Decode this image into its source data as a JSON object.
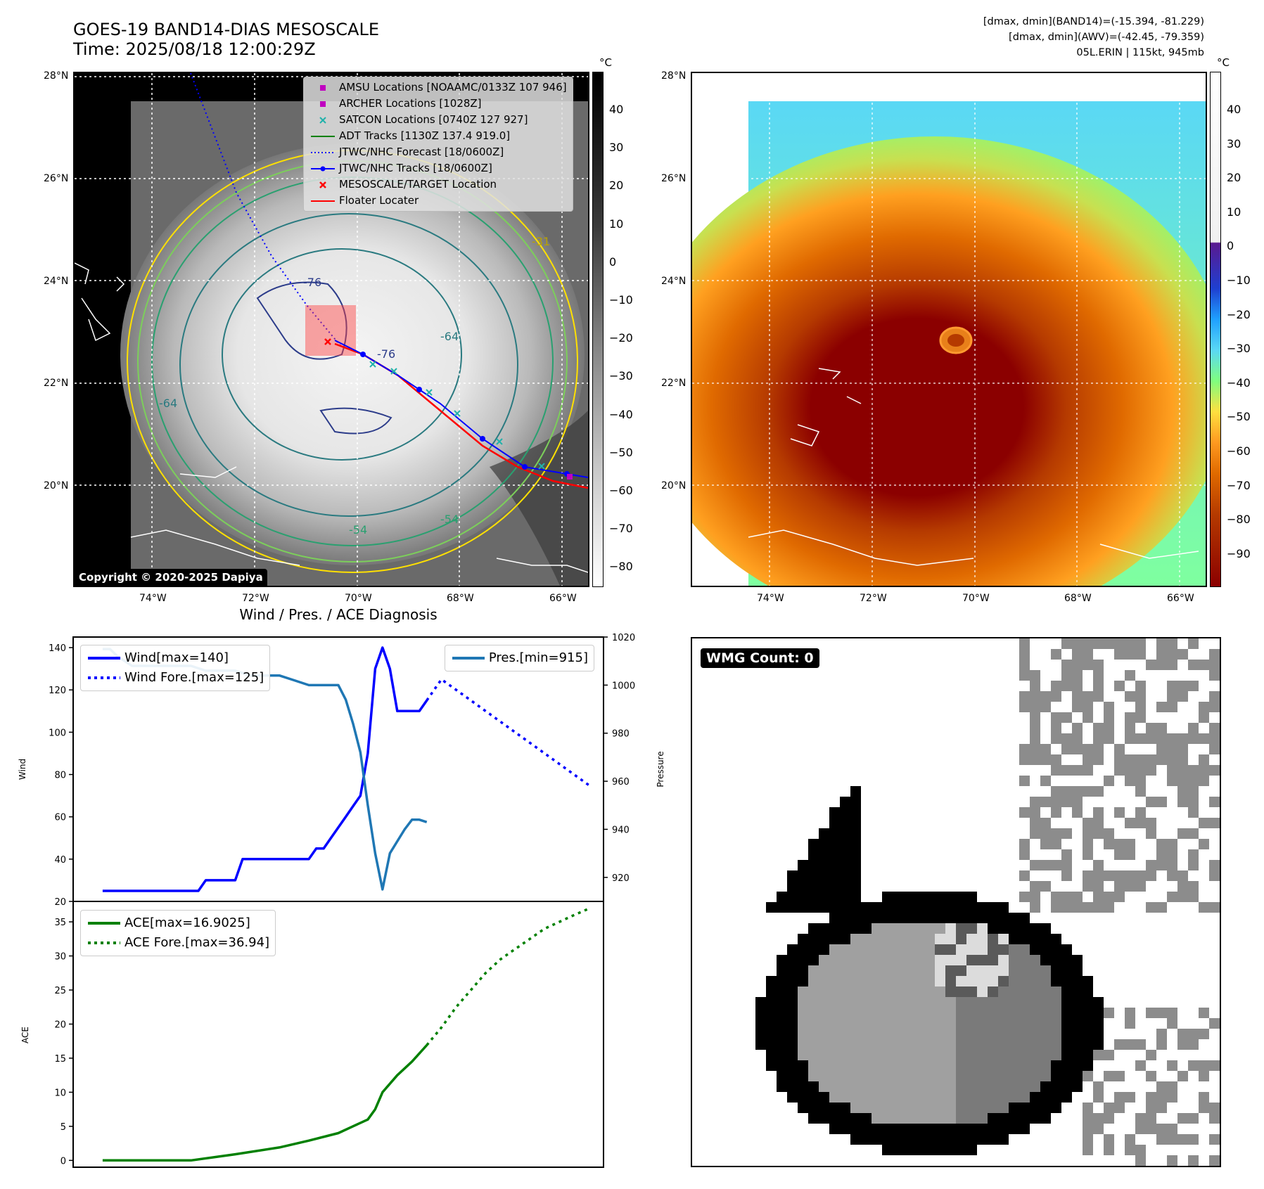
{
  "header": {
    "title": "GOES-19 BAND14-DIAS MESOSCALE",
    "time": "Time: 2025/08/18 12:00:29Z",
    "stats_band14": "[dmax, dmin](BAND14)=(-15.394, -81.229)",
    "stats_awv": "[dmax, dmin](AWV)=(-42.45, -79.359)",
    "storm": "05L.ERIN | 115kt, 945mb"
  },
  "ir_panel": {
    "lat_labels": [
      "28°N",
      "26°N",
      "24°N",
      "22°N",
      "20°N"
    ],
    "lon_labels": [
      "74°W",
      "72°W",
      "70°W",
      "68°W",
      "66°W"
    ],
    "colorbar_unit": "°C",
    "colorbar_ticks": [
      "40",
      "30",
      "20",
      "10",
      "0",
      "−10",
      "−20",
      "−30",
      "−40",
      "−50",
      "−60",
      "−70",
      "−80"
    ],
    "copyright": "Copyright © 2020-2025 Dapiya",
    "contour_labels": [
      "-76",
      "-76",
      "-64",
      "-64",
      "-54",
      "-54",
      "-31"
    ],
    "legend": [
      {
        "label": "AMSU Locations [NOAAMC/0133Z 107 946]",
        "color": "#c000c0",
        "marker": "square"
      },
      {
        "label": "ARCHER Locations [1028Z]",
        "color": "#c000c0",
        "marker": "square"
      },
      {
        "label": "SATCON Locations [0740Z 127 927]",
        "color": "#20b2aa",
        "marker": "x"
      },
      {
        "label": "ADT Tracks [1130Z 137.4 919.0]",
        "color": "#008000",
        "marker": "line"
      },
      {
        "label": "JTWC/NHC Forecast [18/0600Z]",
        "color": "#0000ff",
        "marker": "dotted"
      },
      {
        "label": "JTWC/NHC Tracks [18/0600Z]",
        "color": "#0000ff",
        "marker": "line-dot"
      },
      {
        "label": "MESOSCALE/TARGET Location",
        "color": "#ff0000",
        "marker": "x"
      },
      {
        "label": "Floater Locater",
        "color": "#ff0000",
        "marker": "line"
      }
    ]
  },
  "awv_panel": {
    "lat_labels": [
      "28°N",
      "26°N",
      "24°N",
      "22°N",
      "20°N"
    ],
    "lon_labels": [
      "74°W",
      "72°W",
      "70°W",
      "68°W",
      "66°W"
    ],
    "colorbar_unit": "°C",
    "colorbar_ticks": [
      "40",
      "30",
      "20",
      "10",
      "0",
      "−10",
      "−20",
      "−30",
      "−40",
      "−50",
      "−60",
      "−70",
      "−80",
      "−90"
    ],
    "colors": {
      "cold": "#8b0000",
      "warm": "#ff8c00",
      "green": "#7fff7f",
      "cyan": "#5ad8f5"
    }
  },
  "wmg_panel": {
    "label": "WMG Count: 0"
  },
  "chart_data": [
    {
      "type": "line",
      "title": "Wind / Pres. / ACE Diagnosis",
      "ylabel": "Wind",
      "ylabel_right": "Pressure",
      "ylim": [
        20,
        145
      ],
      "ylim_right": [
        910,
        1020
      ],
      "yticks": [
        "20",
        "40",
        "60",
        "80",
        "100",
        "120",
        "140"
      ],
      "yticks_right": [
        "920",
        "940",
        "960",
        "980",
        "1000",
        "1020"
      ],
      "series": [
        {
          "name": "Wind[max=140]",
          "color": "#0000ff",
          "style": "solid",
          "x": [
            0,
            4,
            4.5,
            6.5,
            7,
            9,
            9.5,
            11,
            11.5,
            12.5,
            13,
            13.5,
            14,
            14.5,
            15,
            15.5,
            16,
            16.5,
            17,
            17.5,
            18,
            18.5,
            19,
            19.5,
            20,
            20.5,
            21,
            21.5,
            22
          ],
          "values": [
            25,
            25,
            25,
            25,
            30,
            30,
            40,
            40,
            40,
            40,
            40,
            40,
            40,
            45,
            45,
            50,
            55,
            60,
            65,
            70,
            90,
            130,
            140,
            130,
            110,
            110,
            110,
            110,
            115
          ]
        },
        {
          "name": "Wind Fore.[max=125]",
          "color": "#0000ff",
          "style": "dotted",
          "x": [
            22,
            23,
            24,
            25,
            26,
            27,
            28,
            29,
            30,
            31,
            32,
            33
          ],
          "values": [
            115,
            125,
            120,
            115,
            110,
            105,
            100,
            95,
            90,
            85,
            80,
            75
          ]
        },
        {
          "name": "Pres.[min=915]",
          "color": "#1f77b4",
          "style": "solid",
          "axis": "right",
          "x": [
            0,
            0.5,
            1,
            1.5,
            2,
            3,
            4,
            5,
            6,
            7,
            8,
            9,
            10,
            11,
            12,
            13,
            14,
            15,
            16,
            16.5,
            17,
            17.5,
            18,
            18.5,
            19,
            19.5,
            20,
            20.5,
            21,
            21.5,
            22
          ],
          "values": [
            1015,
            1015,
            1012,
            1010,
            1008,
            1008,
            1008,
            1008,
            1008,
            1006,
            1006,
            1006,
            1004,
            1004,
            1004,
            1002,
            1000,
            1000,
            1000,
            994,
            984,
            972,
            950,
            930,
            915,
            930,
            935,
            940,
            944,
            944,
            943
          ]
        }
      ]
    },
    {
      "type": "line",
      "ylabel": "ACE",
      "ylim": [
        -1,
        38
      ],
      "yticks": [
        "0",
        "5",
        "10",
        "15",
        "20",
        "25",
        "30",
        "35"
      ],
      "series": [
        {
          "name": "ACE[max=16.9025]",
          "color": "#008000",
          "style": "solid",
          "x": [
            0,
            6,
            9,
            12,
            14,
            16,
            17,
            18,
            18.5,
            19,
            20,
            21,
            22
          ],
          "values": [
            0,
            0,
            0.9,
            1.9,
            2.9,
            4,
            5,
            6,
            7.5,
            10,
            12.5,
            14.5,
            16.9
          ]
        },
        {
          "name": "ACE Fore.[max=36.94]",
          "color": "#008000",
          "style": "dotted",
          "x": [
            22,
            23,
            24,
            25,
            26,
            27,
            28,
            29,
            30,
            31,
            32,
            33
          ],
          "values": [
            16.9,
            19.5,
            22.5,
            25,
            27.5,
            29.5,
            31,
            32.5,
            34,
            35,
            36,
            36.94
          ]
        }
      ]
    }
  ]
}
